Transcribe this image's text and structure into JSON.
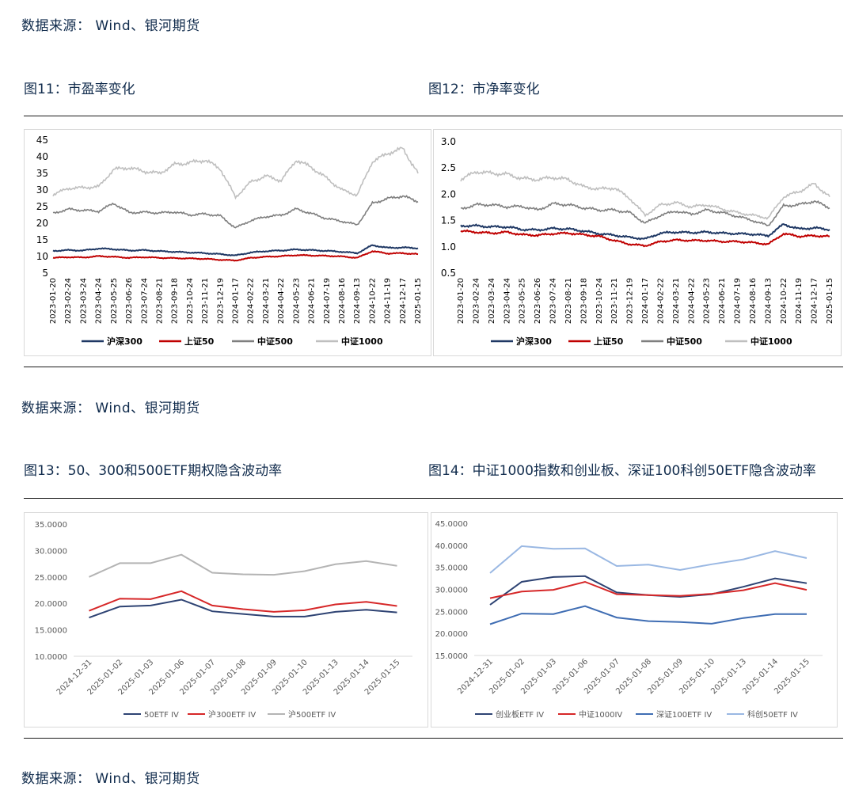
{
  "sources": [
    "数据来源： Wind、银河期货",
    "数据来源： Wind、银河期货",
    "数据来源： Wind、银河期货"
  ],
  "titles": {
    "fig11": "图11：市盈率变化",
    "fig12": "图12：市净率变化",
    "fig13": "图13：50、300和500ETF期权隐含波动率",
    "fig14": "图14：中证1000指数和创业板、深证100科创50ETF隐含波动率"
  },
  "chart_data": [
    {
      "id": "fig11",
      "type": "line",
      "title": "",
      "ylim": [
        5,
        45
      ],
      "yticks": [
        5,
        10,
        15,
        20,
        25,
        30,
        35,
        40,
        45
      ],
      "x_tick_labels": [
        "2023-01-20",
        "2023-02-24",
        "2023-03-24",
        "2023-04-24",
        "2023-05-25",
        "2023-06-26",
        "2023-07-24",
        "2023-08-21",
        "2023-09-18",
        "2023-10-24",
        "2023-11-21",
        "2023-12-19",
        "2024-01-17",
        "2024-02-22",
        "2024-03-21",
        "2024-04-22",
        "2024-05-23",
        "2024-06-21",
        "2024-07-19",
        "2024-08-16",
        "2024-09-13",
        "2024-10-22",
        "2024-11-19",
        "2024-12-17",
        "2025-01-15"
      ],
      "legend_position": "bottom",
      "series": [
        {
          "name": "沪深300",
          "color": "#1f3864",
          "values": [
            11.7,
            11.9,
            11.8,
            12.4,
            12.2,
            11.8,
            11.9,
            11.6,
            11.4,
            11.2,
            11.0,
            10.7,
            10.3,
            11.2,
            11.6,
            11.8,
            12.1,
            11.9,
            11.7,
            11.4,
            11.0,
            13.4,
            12.6,
            12.7,
            12.5
          ]
        },
        {
          "name": "上证50",
          "color": "#c00000",
          "values": [
            9.6,
            9.8,
            9.7,
            10.1,
            9.9,
            9.6,
            9.8,
            9.6,
            9.5,
            9.4,
            9.3,
            9.0,
            8.8,
            9.6,
            9.9,
            10.1,
            10.4,
            10.3,
            10.2,
            10.0,
            9.6,
            11.6,
            10.9,
            11.0,
            10.7
          ]
        },
        {
          "name": "中证500",
          "color": "#7f7f7f",
          "values": [
            23.0,
            24.2,
            23.9,
            23.6,
            26.0,
            23.2,
            23.3,
            23.1,
            23.4,
            22.5,
            22.8,
            22.2,
            18.6,
            20.8,
            22.0,
            22.4,
            24.3,
            22.9,
            21.4,
            20.6,
            19.5,
            26.0,
            27.4,
            28.2,
            26.5
          ]
        },
        {
          "name": "中证1000",
          "color": "#bfbfbf",
          "values": [
            28.6,
            30.5,
            30.7,
            31.0,
            36.2,
            36.7,
            35.6,
            35.0,
            37.7,
            38.2,
            39.0,
            36.4,
            27.8,
            32.4,
            34.2,
            32.8,
            39.0,
            36.8,
            33.5,
            30.0,
            28.5,
            38.5,
            41.0,
            42.5,
            35.0
          ]
        }
      ]
    },
    {
      "id": "fig12",
      "type": "line",
      "title": "",
      "ylim": [
        0.5,
        3.0
      ],
      "yticks": [
        0.5,
        1.0,
        1.5,
        2.0,
        2.5,
        3.0
      ],
      "x_tick_labels": [
        "2023-01-20",
        "2023-02-24",
        "2023-03-24",
        "2023-04-24",
        "2023-05-25",
        "2023-06-26",
        "2023-07-24",
        "2023-08-21",
        "2023-09-18",
        "2023-10-24",
        "2023-11-21",
        "2023-12-19",
        "2024-01-17",
        "2024-02-22",
        "2024-03-21",
        "2024-04-22",
        "2024-05-23",
        "2024-06-21",
        "2024-07-19",
        "2024-08-16",
        "2024-09-13",
        "2024-10-22",
        "2024-11-19",
        "2024-12-17",
        "2025-01-15"
      ],
      "legend_position": "bottom",
      "series": [
        {
          "name": "沪深300",
          "color": "#1f3864",
          "values": [
            1.4,
            1.4,
            1.38,
            1.38,
            1.33,
            1.32,
            1.35,
            1.34,
            1.3,
            1.25,
            1.22,
            1.18,
            1.15,
            1.26,
            1.28,
            1.27,
            1.28,
            1.26,
            1.25,
            1.24,
            1.21,
            1.43,
            1.34,
            1.36,
            1.33
          ]
        },
        {
          "name": "上证50",
          "color": "#c00000",
          "values": [
            1.3,
            1.28,
            1.26,
            1.28,
            1.23,
            1.22,
            1.25,
            1.26,
            1.23,
            1.2,
            1.12,
            1.05,
            1.02,
            1.1,
            1.13,
            1.12,
            1.12,
            1.1,
            1.1,
            1.08,
            1.05,
            1.25,
            1.2,
            1.21,
            1.2
          ]
        },
        {
          "name": "中证500",
          "color": "#7f7f7f",
          "values": [
            1.72,
            1.8,
            1.8,
            1.76,
            1.77,
            1.7,
            1.82,
            1.8,
            1.74,
            1.7,
            1.7,
            1.65,
            1.45,
            1.6,
            1.68,
            1.62,
            1.7,
            1.65,
            1.58,
            1.5,
            1.4,
            1.78,
            1.8,
            1.87,
            1.74
          ]
        },
        {
          "name": "中证1000",
          "color": "#bfbfbf",
          "values": [
            2.28,
            2.43,
            2.4,
            2.38,
            2.3,
            2.28,
            2.32,
            2.28,
            2.14,
            2.1,
            2.12,
            1.92,
            1.6,
            1.8,
            1.84,
            1.76,
            1.8,
            1.72,
            1.65,
            1.6,
            1.55,
            1.95,
            2.05,
            2.2,
            1.95
          ]
        }
      ]
    },
    {
      "id": "fig13",
      "type": "line",
      "title": "",
      "ylim": [
        10,
        35
      ],
      "yticks": [
        "10.0000",
        "15.0000",
        "20.0000",
        "25.0000",
        "30.0000",
        "35.0000"
      ],
      "categories": [
        "2024-12-31",
        "2025-01-02",
        "2025-01-03",
        "2025-01-06",
        "2025-01-07",
        "2025-01-08",
        "2025-01-09",
        "2025-01-10",
        "2025-01-13",
        "2025-01-14",
        "2025-01-15"
      ],
      "legend_position": "bottom",
      "series": [
        {
          "name": "50ETF IV",
          "color": "#2e4373",
          "values": [
            17.3,
            19.4,
            19.6,
            20.7,
            18.5,
            18.0,
            17.5,
            17.5,
            18.4,
            18.8,
            18.3
          ]
        },
        {
          "name": "沪300ETF IV",
          "color": "#d62728",
          "values": [
            18.6,
            20.9,
            20.8,
            22.3,
            19.6,
            18.9,
            18.4,
            18.7,
            19.8,
            20.3,
            19.5
          ]
        },
        {
          "name": "沪500ETF IV",
          "color": "#b4b4b4",
          "values": [
            25.0,
            27.6,
            27.6,
            29.2,
            25.8,
            25.5,
            25.4,
            26.1,
            27.4,
            28.0,
            27.1
          ]
        }
      ]
    },
    {
      "id": "fig14",
      "type": "line",
      "title": "",
      "ylim": [
        15,
        45
      ],
      "yticks": [
        "15.0000",
        "20.0000",
        "25.0000",
        "30.0000",
        "35.0000",
        "40.0000",
        "45.0000"
      ],
      "categories": [
        "2024-12-31",
        "2025-01-02",
        "2025-01-03",
        "2025-01-06",
        "2025-01-07",
        "2025-01-08",
        "2025-01-09",
        "2025-01-10",
        "2025-01-13",
        "2025-01-14",
        "2025-01-15"
      ],
      "legend_position": "bottom",
      "series": [
        {
          "name": "创业板ETF IV",
          "color": "#2e4373",
          "values": [
            26.5,
            31.7,
            32.8,
            33.0,
            29.3,
            28.7,
            28.3,
            28.9,
            30.6,
            32.5,
            31.4
          ]
        },
        {
          "name": "中证1000IV",
          "color": "#d62728",
          "values": [
            28.0,
            29.5,
            29.9,
            31.7,
            28.9,
            28.7,
            28.5,
            29.0,
            29.8,
            31.4,
            29.9
          ]
        },
        {
          "name": "深证100ETF IV",
          "color": "#3f6db3",
          "values": [
            22.1,
            24.5,
            24.4,
            26.2,
            23.6,
            22.8,
            22.6,
            22.2,
            23.5,
            24.4,
            24.4
          ]
        },
        {
          "name": "科创50ETF IV",
          "color": "#9ab8e3",
          "values": [
            33.7,
            39.8,
            39.2,
            39.3,
            35.3,
            35.6,
            34.4,
            35.7,
            36.8,
            38.7,
            37.1
          ]
        }
      ]
    }
  ]
}
